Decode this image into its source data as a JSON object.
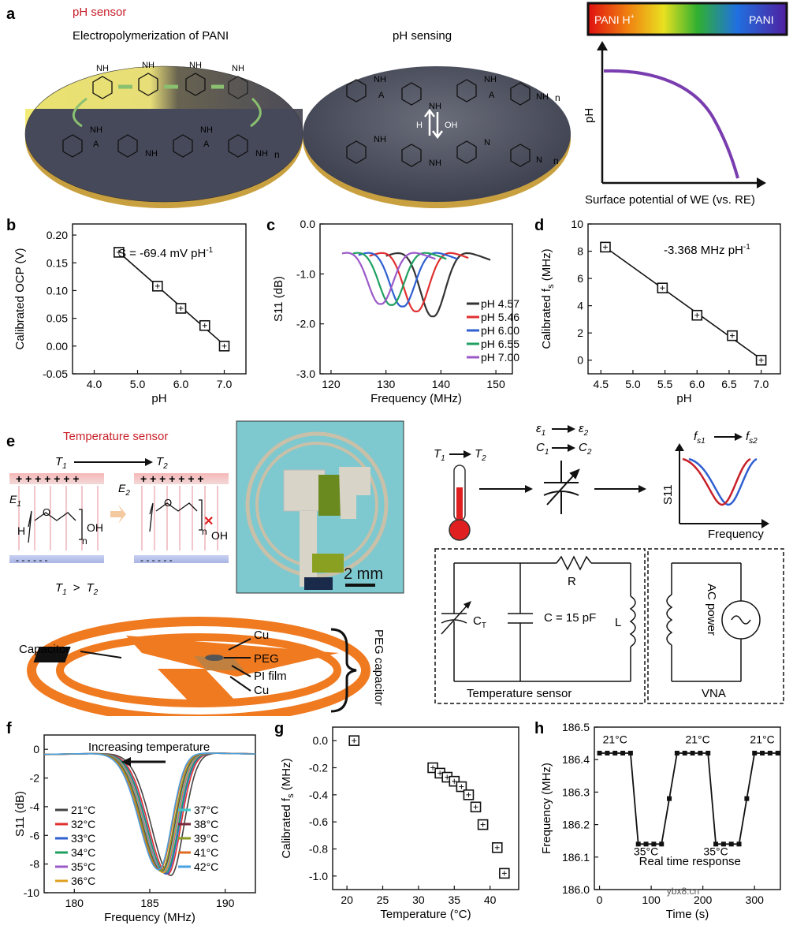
{
  "panel_letters": {
    "a": "a",
    "b": "b",
    "c": "c",
    "d": "d",
    "e": "e",
    "f": "f",
    "g": "g",
    "h": "h"
  },
  "panel_a": {
    "section_title": "pH sensor",
    "disk1_title": "Electropolymerization of PANI",
    "disk2_title": "pH sensing",
    "nh2": "NH",
    "nh_label": "NH",
    "n_label": "N",
    "a_minus": "A",
    "proton": "H",
    "hydroxide": "OH",
    "repeat_n": "n",
    "colorbar_left": "PANI H",
    "colorbar_right": "PANI",
    "y_label": "pH",
    "x_label": "Surface potential of WE (vs. RE)"
  },
  "chart_data": [
    {
      "id": "b",
      "type": "scatter",
      "xlabel": "pH",
      "ylabel": "Calibrated OCP (V)",
      "xlim": [
        3.5,
        7.5
      ],
      "ylim": [
        -0.05,
        0.22
      ],
      "xticks": [
        "4.0",
        "5.0",
        "6.0",
        "7.0"
      ],
      "xtick_values": [
        4,
        5,
        6,
        7
      ],
      "yticks": [
        "-0.05",
        "0.00",
        "0.05",
        "0.10",
        "0.15",
        "0.20"
      ],
      "ytick_values": [
        -0.05,
        0,
        0.05,
        0.1,
        0.15,
        0.2
      ],
      "x": [
        4.57,
        5.46,
        6.0,
        6.55,
        7.0
      ],
      "y": [
        0.169,
        0.108,
        0.068,
        0.037,
        0.0
      ],
      "annotation": "S = -69.4 mV pH",
      "annotation_sup": "-1"
    },
    {
      "id": "c",
      "type": "line",
      "xlabel": "Frequency (MHz)",
      "ylabel": "S11 (dB)",
      "xlim": [
        118,
        153
      ],
      "ylim": [
        -3.0,
        0.0
      ],
      "xticks": [
        "120",
        "130",
        "140",
        "150"
      ],
      "xtick_values": [
        120,
        130,
        140,
        150
      ],
      "yticks": [
        "0.0",
        "-1.0",
        "-2.0",
        "-3.0"
      ],
      "ytick_values": [
        0,
        -1,
        -2,
        -3
      ],
      "series": [
        {
          "name": "pH 4.57",
          "color": "#333333",
          "center": 138.5,
          "depth": -1.85,
          "x_start": 130,
          "x_end": 149
        },
        {
          "name": "pH 5.46",
          "color": "#e03030",
          "center": 135.5,
          "depth": -1.75,
          "x_start": 127,
          "x_end": 145
        },
        {
          "name": "pH 6.00",
          "color": "#2f5fd0",
          "center": 133.0,
          "depth": -1.65,
          "x_start": 125,
          "x_end": 143
        },
        {
          "name": "pH 6.55",
          "color": "#1fa060",
          "center": 131.0,
          "depth": -1.62,
          "x_start": 124,
          "x_end": 141
        },
        {
          "name": "pH 7.00",
          "color": "#9b59c8",
          "center": 129.0,
          "depth": -1.6,
          "x_start": 122,
          "x_end": 139
        }
      ]
    },
    {
      "id": "d",
      "type": "scatter",
      "xlabel": "pH",
      "ylabel": "Calibrated f",
      "ylabel_sub": "s",
      "ylabel_unit": " (MHz)",
      "xlim": [
        4.3,
        7.3
      ],
      "ylim": [
        -1,
        10
      ],
      "xticks": [
        "4.5",
        "5.0",
        "5.5",
        "6.0",
        "6.5",
        "7.0"
      ],
      "xtick_values": [
        4.5,
        5,
        5.5,
        6,
        6.5,
        7
      ],
      "yticks": [
        "0",
        "2",
        "4",
        "6",
        "8",
        "10"
      ],
      "ytick_values": [
        0,
        2,
        4,
        6,
        8,
        10
      ],
      "x": [
        4.57,
        5.46,
        6.0,
        6.55,
        7.0
      ],
      "y": [
        8.3,
        5.3,
        3.3,
        1.8,
        0.0
      ],
      "annotation": "-3.368 MHz pH",
      "annotation_sup": "-1"
    },
    {
      "id": "f",
      "type": "line",
      "xlabel": "Frequency (MHz)",
      "ylabel": "S11 (dB)",
      "xlim": [
        178,
        192
      ],
      "ylim": [
        -10,
        1
      ],
      "xticks": [
        "180",
        "185",
        "190"
      ],
      "xtick_values": [
        180,
        185,
        190
      ],
      "yticks": [
        "0",
        "-2",
        "-4",
        "-6",
        "-8",
        "-10"
      ],
      "ytick_values": [
        0,
        -2,
        -4,
        -6,
        -8,
        -10
      ],
      "annotation": "Increasing temperature",
      "series": [
        {
          "name": "21°C",
          "color": "#444444",
          "center": 186.4,
          "depth": -8.8
        },
        {
          "name": "32°C",
          "color": "#e03030",
          "center": 186.2,
          "depth": -8.7
        },
        {
          "name": "33°C",
          "color": "#2f5fd0",
          "center": 186.1,
          "depth": -8.7
        },
        {
          "name": "34°C",
          "color": "#1fa060",
          "center": 186.05,
          "depth": -8.6
        },
        {
          "name": "35°C",
          "color": "#9b59c8",
          "center": 185.95,
          "depth": -8.6
        },
        {
          "name": "36°C",
          "color": "#e0a020",
          "center": 185.9,
          "depth": -8.6
        },
        {
          "name": "37°C",
          "color": "#40c8c8",
          "center": 185.85,
          "depth": -8.5
        },
        {
          "name": "38°C",
          "color": "#7a2a3a",
          "center": 185.8,
          "depth": -8.5
        },
        {
          "name": "39°C",
          "color": "#8a9a20",
          "center": 185.75,
          "depth": -8.5
        },
        {
          "name": "41°C",
          "color": "#e06a20",
          "center": 185.65,
          "depth": -8.4
        },
        {
          "name": "42°C",
          "color": "#4aa0e0",
          "center": 185.6,
          "depth": -8.4
        }
      ]
    },
    {
      "id": "g",
      "type": "scatter",
      "xlabel": "Temperature (°C)",
      "ylabel": "Calibrated f",
      "ylabel_sub": "s",
      "ylabel_unit": " (MHz)",
      "xlim": [
        18,
        44
      ],
      "ylim": [
        -1.1,
        0.1
      ],
      "xticks": [
        "20",
        "25",
        "30",
        "35",
        "40"
      ],
      "xtick_values": [
        20,
        25,
        30,
        35,
        40
      ],
      "yticks": [
        "0.0",
        "-0.2",
        "-0.4",
        "-0.6",
        "-0.8",
        "-1.0"
      ],
      "ytick_values": [
        0,
        -0.2,
        -0.4,
        -0.6,
        -0.8,
        -1.0
      ],
      "x": [
        21,
        32,
        33,
        34,
        35,
        36,
        37,
        38,
        39,
        41,
        42
      ],
      "y": [
        0.0,
        -0.2,
        -0.24,
        -0.27,
        -0.3,
        -0.34,
        -0.4,
        -0.49,
        -0.62,
        -0.79,
        -0.98
      ]
    },
    {
      "id": "h",
      "type": "line",
      "xlabel": "Time (s)",
      "ylabel": "Frequency (MHz)",
      "xlim": [
        -10,
        350
      ],
      "ylim": [
        186.0,
        186.5
      ],
      "xticks": [
        "0",
        "100",
        "200",
        "300"
      ],
      "xtick_values": [
        0,
        100,
        200,
        300
      ],
      "yticks": [
        "186.0",
        "186.1",
        "186.2",
        "186.3",
        "186.4",
        "186.5"
      ],
      "ytick_values": [
        186.0,
        186.1,
        186.2,
        186.3,
        186.4,
        186.5
      ],
      "x": [
        0,
        15,
        30,
        45,
        60,
        75,
        90,
        105,
        120,
        135,
        150,
        165,
        180,
        195,
        210,
        225,
        240,
        255,
        270,
        285,
        300,
        315,
        330,
        345
      ],
      "y": [
        186.42,
        186.42,
        186.42,
        186.42,
        186.42,
        186.14,
        186.14,
        186.14,
        186.14,
        186.28,
        186.42,
        186.42,
        186.42,
        186.42,
        186.42,
        186.14,
        186.14,
        186.14,
        186.14,
        186.28,
        186.42,
        186.42,
        186.42,
        186.42
      ],
      "annotations": [
        "21°C",
        "35°C",
        "21°C",
        "35°C",
        "21°C"
      ],
      "caption": "Real time response",
      "watermark": "ybx8.cn"
    }
  ],
  "panel_e": {
    "section_title": "Temperature sensor",
    "t1": "T",
    "t2": "T",
    "sub1": "1",
    "sub2": "2",
    "e_label": "E",
    "plus_row": "+ + + + + + +",
    "minus_row": "-  -  -  -  -  -",
    "h_atom": "H",
    "o_atom": "O",
    "oh_group": "OH",
    "repeat_n": "n",
    "compare": "T",
    "gt": ">",
    "scale_bar": "2 mm",
    "label_capacitor": "Capacitor",
    "label_cu_top": "Cu",
    "label_peg": "PEG",
    "label_pi": "PI film",
    "label_cu_bottom": "Cu",
    "label_peg_capacitor": "PEG capacitor",
    "eps": "ε",
    "cap": "C",
    "fs": "f",
    "fs1": "s1",
    "fs2": "s2",
    "s11_axis": "S11",
    "freq_axis": "Frequency",
    "r_label": "R",
    "ct_label": "C",
    "ct_sub": "T",
    "c_label": "C = 15 pF",
    "l_label": "L",
    "ac_power": "AC power",
    "temp_box_label": "Temperature sensor",
    "vna_label": "VNA"
  }
}
